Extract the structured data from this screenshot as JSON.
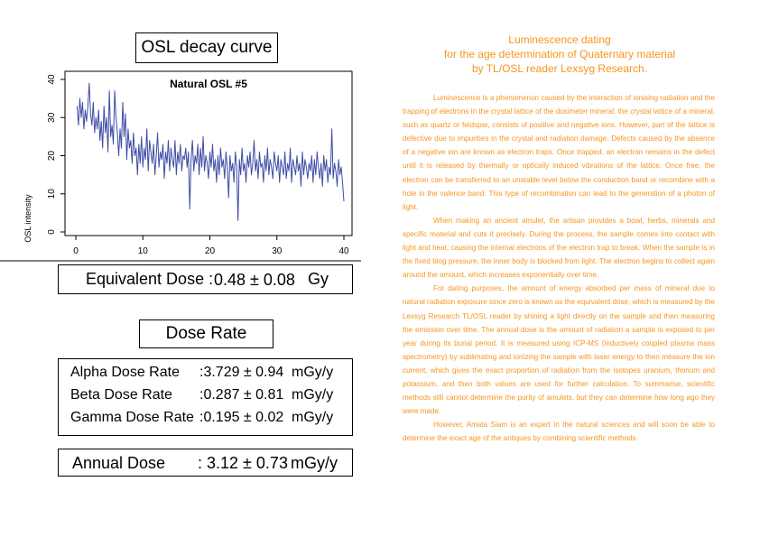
{
  "osl_panel": {
    "title": "OSL decay curve"
  },
  "chart_data": {
    "type": "line",
    "title": "Natural OSL #5",
    "xlabel": "",
    "ylabel": "OSL intensity",
    "xlim": [
      0,
      40
    ],
    "ylim": [
      0,
      40
    ],
    "x_ticks": [
      0,
      10,
      20,
      30,
      40
    ],
    "y_ticks": [
      0,
      10,
      20,
      30,
      40
    ],
    "line_color": "#3f4ba5",
    "grid": false,
    "series": [
      {
        "x": [
          0.2,
          0.4,
          0.6,
          0.8,
          1.0,
          1.2,
          1.4,
          1.6,
          1.8,
          2.0,
          2.2,
          2.4,
          2.6,
          2.8,
          3.0,
          3.2,
          3.4,
          3.6,
          3.8,
          4.0,
          4.2,
          4.4,
          4.6,
          4.8,
          5.0,
          5.2,
          5.4,
          5.6,
          5.8,
          6.0,
          6.2,
          6.4,
          6.6,
          6.8,
          7.0,
          7.2,
          7.4,
          7.6,
          7.8,
          8.0,
          8.2,
          8.4,
          8.6,
          8.8,
          9.0,
          9.2,
          9.4,
          9.6,
          9.8,
          10.0,
          10.2,
          10.4,
          10.6,
          10.8,
          11.0,
          11.2,
          11.4,
          11.6,
          11.8,
          12.0,
          12.2,
          12.4,
          12.6,
          12.8,
          13.0,
          13.2,
          13.4,
          13.6,
          13.8,
          14.0,
          14.2,
          14.4,
          14.6,
          14.8,
          15.0,
          15.2,
          15.4,
          15.6,
          15.8,
          16.0,
          16.2,
          16.4,
          16.6,
          16.8,
          17.0,
          17.2,
          17.4,
          17.6,
          17.8,
          18.0,
          18.2,
          18.4,
          18.6,
          18.8,
          19.0,
          19.2,
          19.4,
          19.6,
          19.8,
          20.0,
          20.2,
          20.4,
          20.6,
          20.8,
          21.0,
          21.2,
          21.4,
          21.6,
          21.8,
          22.0,
          22.2,
          22.4,
          22.6,
          22.8,
          23.0,
          23.2,
          23.4,
          23.6,
          23.8,
          24.0,
          24.2,
          24.4,
          24.6,
          24.8,
          25.0,
          25.2,
          25.4,
          25.6,
          25.8,
          26.0,
          26.2,
          26.4,
          26.6,
          26.8,
          27.0,
          27.2,
          27.4,
          27.6,
          27.8,
          28.0,
          28.2,
          28.4,
          28.6,
          28.8,
          29.0,
          29.2,
          29.4,
          29.6,
          29.8,
          30.0,
          30.2,
          30.4,
          30.6,
          30.8,
          31.0,
          31.2,
          31.4,
          31.6,
          31.8,
          32.0,
          32.2,
          32.4,
          32.6,
          32.8,
          33.0,
          33.2,
          33.4,
          33.6,
          33.8,
          34.0,
          34.2,
          34.4,
          34.6,
          34.8,
          35.0,
          35.2,
          35.4,
          35.6,
          35.8,
          36.0,
          36.2,
          36.4,
          36.6,
          36.8,
          37.0,
          37.2,
          37.4,
          37.6,
          37.8,
          38.0,
          38.2,
          38.4,
          38.6,
          38.8,
          39.0,
          39.2,
          39.4,
          39.6,
          39.8,
          40.0
        ],
        "y": [
          33,
          28,
          35,
          30,
          34,
          27,
          32,
          29,
          33,
          39,
          31,
          28,
          34,
          26,
          30,
          27,
          32,
          24,
          29,
          22,
          33,
          26,
          30,
          21,
          37,
          25,
          28,
          23,
          37,
          30,
          26,
          20,
          27,
          22,
          34,
          25,
          31,
          19,
          27,
          22,
          24,
          18,
          26,
          20,
          22,
          15,
          23,
          18,
          25,
          17,
          22,
          19,
          27,
          16,
          24,
          21,
          18,
          23,
          15,
          20,
          26,
          17,
          21,
          19,
          23,
          14,
          21,
          18,
          24,
          16,
          22,
          19,
          17,
          24,
          15,
          21,
          18,
          23,
          16,
          20,
          19,
          22,
          17,
          21,
          6,
          19,
          24,
          16,
          20,
          18,
          23,
          15,
          22,
          17,
          25,
          16,
          20,
          18,
          14,
          21,
          17,
          23,
          16,
          19,
          13,
          20,
          15,
          22,
          17,
          19,
          14,
          21,
          17,
          9,
          20,
          16,
          18,
          13,
          21,
          17,
          3,
          19,
          15,
          22,
          16,
          18,
          13,
          20,
          17,
          21,
          15,
          18,
          24,
          16,
          19,
          14,
          21,
          17,
          18,
          13,
          20,
          16,
          22,
          15,
          19,
          17,
          14,
          21,
          18,
          16,
          20,
          13,
          19,
          17,
          15,
          21,
          14,
          18,
          16,
          22,
          13,
          19,
          17,
          15,
          20,
          16,
          18,
          12,
          21,
          15,
          19,
          17,
          14,
          18,
          16,
          20,
          13,
          19,
          15,
          21,
          17,
          14,
          18,
          12,
          20,
          16,
          19,
          13,
          17,
          15,
          27,
          14,
          18,
          16,
          12,
          19,
          15,
          17,
          13,
          8
        ]
      }
    ]
  },
  "equivalent_dose": {
    "label": "Equivalent Dose :",
    "value": "0.48 ± 0.08",
    "unit": "Gy"
  },
  "dose_rate_panel": {
    "title": "Dose Rate",
    "rows": [
      {
        "label": "Alpha Dose Rate",
        "value": ":3.729 ± 0.94",
        "unit": "mGy/y"
      },
      {
        "label": "Beta Dose Rate",
        "value": ":0.287 ± 0.81",
        "unit": "mGy/y"
      },
      {
        "label": "Gamma Dose Rate",
        "value": ":0.195 ± 0.02",
        "unit": "mGy/y"
      }
    ]
  },
  "annual_dose": {
    "label": "Annual Dose",
    "value": ": 3.12 ± 0.73",
    "unit": "mGy/y"
  },
  "article": {
    "title_lines": [
      "Luminescence dating",
      "for the age determination of Quaternary material",
      "by TL/OSL reader Lexsyg Research."
    ],
    "paragraphs": [
      "Luminescence is a phenomenon caused by the interaction of ionising radiation and the trapping of electrons in the crystal lattice of the dosimeter mineral. the crystal lattice of a mineral, such as quartz or feldspar, consists of positive and negative ions. However, part of the lattice is defective due to impurities in the crystal and radiation damage. Defects caused by the absence of a negative ion are known as electron traps. Once trapped, an electron remains in the defect until it is released by thermally or optically induced vibrations of the lattice. Once free, the electron can be transferred to an unstable level below the conduction band or recombine with a hole in the valence band. This type of recombination can lead to the generation of a photon of light.",
      "When making an ancient amulet, the artisan provides a bowl, herbs, minerals and specific material and cuts it precisely. During the process, the sample comes into contact with light and heat, causing the internal electrons of the electron trap to break. When the sample is in the fixed blog pressure, the inner body is blocked from light. The electron begins to collect again around the amount, which increases exponentially over time.",
      "For dating purposes, the amount of energy absorbed per mass of mineral due to natural radiation exposure since zero is known as the equivalent dose, which is measured by the Lexsyg Research TL/OSL reader by shining a light directly on the sample and then measuring the emission over time. The annual dose is the amount of radiation a sample is exposed to per year during its burial period. It is measured using ICP-MS (inductively coupled plasma mass spectrometry) by sublimating and ionizing the sample with laser energy to then measure the ion current, which gives the exact proportion of radiation from the isotopes uranium, thorium and potassium, and then both values are used for further calculation. To summarise, scientific methods still cannot determine the purity of amulets, but they can determine how long ago they were made.",
      "However, Amata Siam is an expert in the natural sciences and will soon be able to determine the exact age of the antiques by combining scientific methods."
    ]
  }
}
